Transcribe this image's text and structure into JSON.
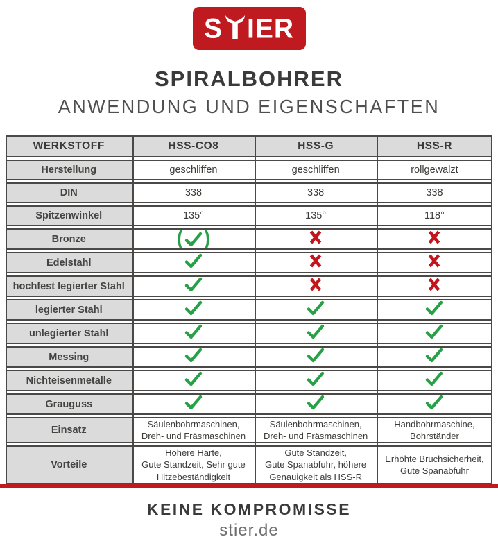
{
  "logo": {
    "wordmark": "STIER"
  },
  "header": {
    "title": "SPIRALBOHRER",
    "subtitle": "ANWENDUNG UND EIGENSCHAFTEN"
  },
  "table": {
    "columns": [
      "WERKSTOFF",
      "HSS-CO8",
      "HSS-G",
      "HSS-R"
    ],
    "rows": [
      {
        "label": "Herstellung",
        "type": "text",
        "values": [
          "geschliffen",
          "geschliffen",
          "rollgewalzt"
        ]
      },
      {
        "label": "DIN",
        "type": "text",
        "values": [
          "338",
          "338",
          "338"
        ]
      },
      {
        "label": "Spitzenwinkel",
        "type": "text",
        "values": [
          "135°",
          "135°",
          "118°"
        ]
      },
      {
        "label": "Bronze",
        "type": "symbol",
        "values": [
          "check_bracketed",
          "cross",
          "cross"
        ]
      },
      {
        "label": "Edelstahl",
        "type": "symbol",
        "values": [
          "check",
          "cross",
          "cross"
        ]
      },
      {
        "label": "hochfest legierter Stahl",
        "type": "symbol",
        "values": [
          "check",
          "cross",
          "cross"
        ]
      },
      {
        "label": "legierter Stahl",
        "type": "symbol",
        "values": [
          "check",
          "check",
          "check"
        ]
      },
      {
        "label": "unlegierter Stahl",
        "type": "symbol",
        "values": [
          "check",
          "check",
          "check"
        ]
      },
      {
        "label": "Messing",
        "type": "symbol",
        "values": [
          "check",
          "check",
          "check"
        ]
      },
      {
        "label": "Nichteisenmetalle",
        "type": "symbol",
        "values": [
          "check",
          "check",
          "check"
        ]
      },
      {
        "label": "Grauguss",
        "type": "symbol",
        "values": [
          "check",
          "check",
          "check"
        ]
      },
      {
        "label": "Einsatz",
        "type": "multitext",
        "values": [
          "Säulenbohrmaschinen,\nDreh- und Fräsmaschinen",
          "Säulenbohrmaschinen,\nDreh- und Fräsmaschinen",
          "Handbohrmaschine,\nBohrständer"
        ]
      },
      {
        "label": "Vorteile",
        "type": "multitext",
        "values": [
          "Höhere Härte,\nGute Standzeit, Sehr gute\nHitzebeständigkeit",
          "Gute Standzeit,\nGute Spanabfuhr, höhere\nGenauigkeit als HSS-R",
          "Erhöhte Bruchsicherheit,\nGute Spanabfuhr"
        ]
      }
    ],
    "symbols": {
      "check": "✓",
      "cross": "✗",
      "check_bracketed": "(✓)",
      "bracket_open": "(",
      "bracket_close": ")"
    }
  },
  "footer": {
    "slogan": "KEINE KOMPROMISSE",
    "website": "stier.de"
  },
  "colors": {
    "brand_red": "#bf1a1f",
    "check_green": "#27a047",
    "cross_red": "#c3151c",
    "grid_gray": "#4a4948",
    "cell_gray": "#dbdbdb",
    "text_dark": "#3a3a39"
  }
}
